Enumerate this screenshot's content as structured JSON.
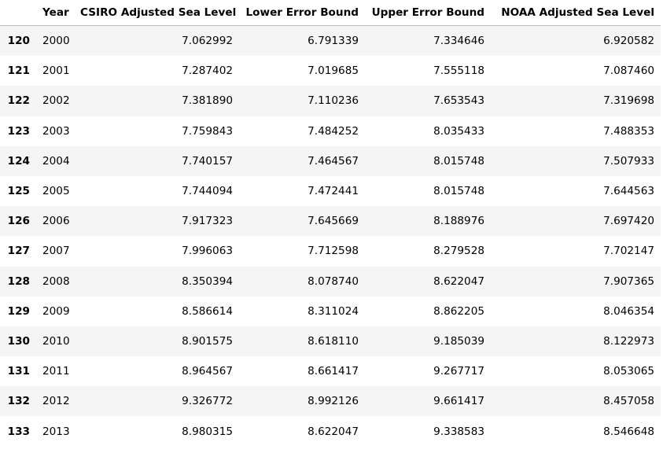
{
  "table": {
    "columns": [
      "",
      "Year",
      "CSIRO Adjusted Sea Level",
      "Lower Error Bound",
      "Upper Error Bound",
      "NOAA Adjusted Sea Level"
    ],
    "rows": [
      {
        "index": "120",
        "year": "2000",
        "csiro": "7.062992",
        "lower": "6.791339",
        "upper": "7.334646",
        "noaa": "6.920582"
      },
      {
        "index": "121",
        "year": "2001",
        "csiro": "7.287402",
        "lower": "7.019685",
        "upper": "7.555118",
        "noaa": "7.087460"
      },
      {
        "index": "122",
        "year": "2002",
        "csiro": "7.381890",
        "lower": "7.110236",
        "upper": "7.653543",
        "noaa": "7.319698"
      },
      {
        "index": "123",
        "year": "2003",
        "csiro": "7.759843",
        "lower": "7.484252",
        "upper": "8.035433",
        "noaa": "7.488353"
      },
      {
        "index": "124",
        "year": "2004",
        "csiro": "7.740157",
        "lower": "7.464567",
        "upper": "8.015748",
        "noaa": "7.507933"
      },
      {
        "index": "125",
        "year": "2005",
        "csiro": "7.744094",
        "lower": "7.472441",
        "upper": "8.015748",
        "noaa": "7.644563"
      },
      {
        "index": "126",
        "year": "2006",
        "csiro": "7.917323",
        "lower": "7.645669",
        "upper": "8.188976",
        "noaa": "7.697420"
      },
      {
        "index": "127",
        "year": "2007",
        "csiro": "7.996063",
        "lower": "7.712598",
        "upper": "8.279528",
        "noaa": "7.702147"
      },
      {
        "index": "128",
        "year": "2008",
        "csiro": "8.350394",
        "lower": "8.078740",
        "upper": "8.622047",
        "noaa": "7.907365"
      },
      {
        "index": "129",
        "year": "2009",
        "csiro": "8.586614",
        "lower": "8.311024",
        "upper": "8.862205",
        "noaa": "8.046354"
      },
      {
        "index": "130",
        "year": "2010",
        "csiro": "8.901575",
        "lower": "8.618110",
        "upper": "9.185039",
        "noaa": "8.122973"
      },
      {
        "index": "131",
        "year": "2011",
        "csiro": "8.964567",
        "lower": "8.661417",
        "upper": "9.267717",
        "noaa": "8.053065"
      },
      {
        "index": "132",
        "year": "2012",
        "csiro": "9.326772",
        "lower": "8.992126",
        "upper": "9.661417",
        "noaa": "8.457058"
      },
      {
        "index": "133",
        "year": "2013",
        "csiro": "8.980315",
        "lower": "8.622047",
        "upper": "9.338583",
        "noaa": "8.546648"
      }
    ]
  },
  "colors": {
    "row_stripe": "#f5f5f5",
    "header_rule": "#bdbdbd",
    "text": "#000000"
  }
}
